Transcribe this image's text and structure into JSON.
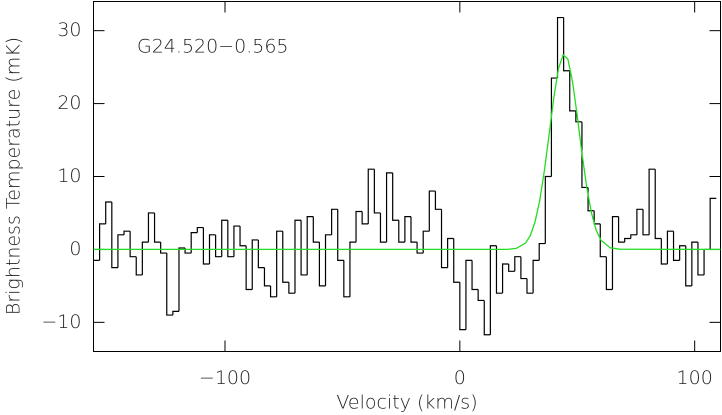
{
  "chart_data": {
    "type": "step",
    "annotation": "G24.520−0.565",
    "x_label": "Velocity (km/s)",
    "y_label": "Brightness Temperature (mK)",
    "x": [
      -154.7,
      -152.1,
      -149.5,
      -146.9,
      -144.3,
      -141.7,
      -139.1,
      -136.5,
      -133.9,
      -131.3,
      -128.7,
      -126.1,
      -123.5,
      -120.9,
      -118.3,
      -115.7,
      -113.1,
      -110.5,
      -107.9,
      -105.3,
      -102.7,
      -100.1,
      -97.5,
      -94.9,
      -92.3,
      -89.7,
      -87.1,
      -84.5,
      -81.9,
      -79.3,
      -76.7,
      -74.1,
      -71.5,
      -68.9,
      -66.3,
      -63.7,
      -61.1,
      -58.5,
      -55.9,
      -53.3,
      -50.7,
      -48.1,
      -45.5,
      -42.9,
      -40.3,
      -37.7,
      -35.1,
      -32.5,
      -29.9,
      -27.3,
      -24.7,
      -22.1,
      -19.5,
      -16.9,
      -14.3,
      -11.7,
      -9.1,
      -6.5,
      -3.9,
      -1.3,
      1.3,
      3.9,
      6.5,
      9.1,
      11.7,
      14.3,
      16.9,
      19.5,
      22.1,
      24.7,
      27.3,
      29.9,
      32.5,
      35.1,
      37.7,
      40.3,
      42.9,
      45.5,
      48.1,
      50.7,
      53.3,
      55.9,
      58.5,
      61.1,
      63.7,
      66.3,
      68.9,
      71.5,
      74.1,
      76.7,
      79.3,
      81.9,
      84.5,
      87.1,
      89.7,
      92.3,
      94.9,
      97.5,
      100.1,
      102.7,
      105.3,
      107.9
    ],
    "series": [
      {
        "color": "#000000",
        "values": [
          -1.5,
          3.5,
          6.5,
          -2.5,
          2,
          2.5,
          -1,
          -3.5,
          1,
          5,
          1,
          -0.5,
          -9,
          -8.5,
          0.2,
          -0.5,
          2.3,
          3,
          -2,
          2,
          -1,
          4,
          -1,
          3.2,
          0.5,
          -5.5,
          1.3,
          -2.5,
          -5,
          -6.5,
          2.5,
          -4.5,
          -6,
          4,
          -3.5,
          4.5,
          1,
          -5,
          2,
          5.5,
          -1.5,
          -6.5,
          1,
          5.2,
          3.5,
          11,
          5,
          1,
          10.5,
          4,
          1,
          4.5,
          1,
          -0.5,
          2.5,
          8,
          5.5,
          -2.5,
          1.5,
          -4.5,
          -11,
          -1.5,
          -5.5,
          -7,
          -11.7,
          0.5,
          -6,
          -2,
          -3,
          -1,
          -4,
          -6,
          -1.5,
          0.8,
          10,
          23.5,
          31.8,
          24.5,
          19,
          17.5,
          8.5,
          5.3,
          3.5,
          -1,
          -5.5,
          4.5,
          1,
          1.5,
          2,
          5.5,
          2,
          11,
          1.5,
          -2,
          2.5,
          -1.5,
          0.5,
          -5,
          1,
          -3.5,
          0,
          7
        ]
      },
      {
        "type": "line",
        "color": "#22dd22",
        "x": [
          -156,
          20,
          24,
          28,
          30,
          32,
          34,
          36,
          38,
          40,
          42,
          44,
          46,
          48,
          50,
          52,
          54,
          56,
          58,
          60,
          64,
          68,
          111
        ],
        "values": [
          0,
          0.01,
          0.14,
          0.87,
          1.9,
          3.74,
          6.68,
          10.8,
          15.7,
          20.8,
          24.8,
          26.7,
          26.1,
          23.0,
          18.3,
          13.2,
          8.6,
          5.06,
          2.7,
          1.3,
          0.22,
          0.03,
          0
        ]
      }
    ],
    "xlim": [
      -156,
      111
    ],
    "ylim": [
      -14,
      34
    ],
    "xticks": [
      {
        "value": -100,
        "label": "−100"
      },
      0,
      100
    ],
    "yticks": [
      {
        "value": -10,
        "label": "−10"
      },
      0,
      10,
      20,
      30
    ]
  }
}
